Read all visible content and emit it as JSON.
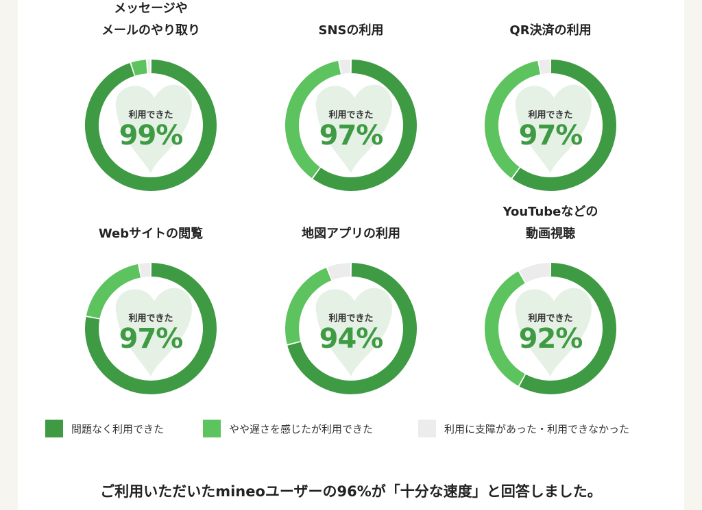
{
  "chart_data": [
    {
      "type": "pie",
      "title_lines": [
        "メッセージや",
        "メールのやり取り"
      ],
      "center_label": "利用できた",
      "center_value": "99%",
      "values": [
        95,
        4,
        1
      ]
    },
    {
      "type": "pie",
      "title_lines": [
        "SNSの利用"
      ],
      "center_label": "利用できた",
      "center_value": "97%",
      "values": [
        60,
        37,
        3
      ]
    },
    {
      "type": "pie",
      "title_lines": [
        "QR決済の利用"
      ],
      "center_label": "利用できた",
      "center_value": "97%",
      "values": [
        60,
        37,
        3
      ]
    },
    {
      "type": "pie",
      "title_lines": [
        "Webサイトの閲覧"
      ],
      "center_label": "利用できた",
      "center_value": "97%",
      "values": [
        78,
        19,
        3
      ]
    },
    {
      "type": "pie",
      "title_lines": [
        "地図アプリの利用"
      ],
      "center_label": "利用できた",
      "center_value": "94%",
      "values": [
        71,
        23,
        6
      ]
    },
    {
      "type": "pie",
      "title_lines": [
        "YouTubeなどの",
        "動画視聴"
      ],
      "center_label": "利用できた",
      "center_value": "92%",
      "values": [
        58,
        34,
        8
      ]
    }
  ],
  "legend": [
    {
      "label": "問題なく利用できた",
      "color": "#3f9a44"
    },
    {
      "label": "やや遅さを感じたが利用できた",
      "color": "#5cc35e"
    },
    {
      "label": "利用に支障があった・利用できなかった",
      "color": "#ececec"
    }
  ],
  "summary": "ご利用いただいたmineoユーザーの96%が「十分な速度」と回答しました。"
}
